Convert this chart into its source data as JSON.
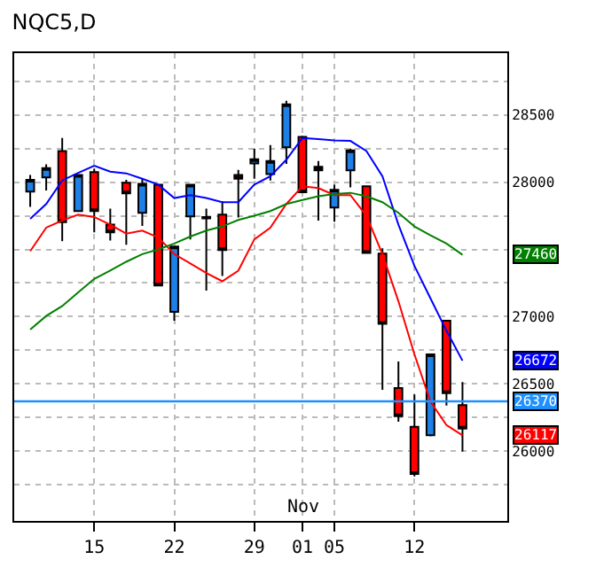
{
  "chart_data": {
    "type": "candlestick",
    "title": "NQC5,D",
    "categories": [
      null,
      null,
      null,
      null,
      "15",
      null,
      null,
      null,
      null,
      "22",
      null,
      null,
      null,
      null,
      "29",
      null,
      null,
      "01",
      null,
      "05",
      null,
      null,
      null,
      null,
      "12",
      null,
      null,
      null
    ],
    "ohlc": [
      [
        27930,
        28053,
        27816,
        28017
      ],
      [
        28035,
        28132,
        27939,
        28105
      ],
      [
        28232,
        28329,
        27561,
        27702
      ],
      [
        27785,
        28060,
        27780,
        28053
      ],
      [
        28075,
        28101,
        27627,
        27785
      ],
      [
        27684,
        27803,
        27566,
        27627
      ],
      [
        27996,
        28018,
        27535,
        27917
      ],
      [
        27772,
        28026,
        27675,
        27987
      ],
      [
        27982,
        27985,
        27230,
        27232
      ],
      [
        27035,
        27525,
        26969,
        27522
      ],
      [
        27746,
        27985,
        27575,
        27982
      ],
      [
        27740,
        27803,
        27193,
        27730
      ],
      [
        27759,
        27860,
        27302,
        27495
      ],
      [
        28053,
        28092,
        27737,
        28026
      ],
      [
        28140,
        28250,
        28026,
        28171
      ],
      [
        28061,
        28276,
        28013,
        28158
      ],
      [
        28259,
        28605,
        28136,
        28579
      ],
      [
        28338,
        28345,
        27920,
        27925
      ],
      [
        28114,
        28158,
        27715,
        28088
      ],
      [
        27811,
        27982,
        27706,
        27943
      ],
      [
        28088,
        28250,
        27961,
        28237
      ],
      [
        27969,
        27975,
        27470,
        27474
      ],
      [
        27469,
        27509,
        26456,
        26947
      ],
      [
        26469,
        26666,
        26219,
        26259
      ],
      [
        26180,
        26421,
        25811,
        25829
      ],
      [
        26118,
        26725,
        26110,
        26719
      ],
      [
        26969,
        26975,
        26338,
        26430
      ],
      [
        26342,
        26513,
        25995,
        26167
      ]
    ],
    "series": [
      {
        "type": "line",
        "color": "#0000ff",
        "values": [
          27728,
          27838,
          28013,
          28070,
          28123,
          28079,
          28066,
          28026,
          27982,
          27882,
          27904,
          27882,
          27851,
          27851,
          27982,
          28044,
          28167,
          28329,
          28320,
          28311,
          28307,
          28232,
          28044,
          27684,
          27377,
          27136,
          26895,
          26672
        ]
      },
      {
        "type": "line",
        "color": "#ff0000",
        "values": [
          27487,
          27662,
          27715,
          27759,
          27741,
          27684,
          27618,
          27640,
          27588,
          27465,
          27395,
          27325,
          27263,
          27342,
          27575,
          27662,
          27838,
          27969,
          27956,
          27904,
          27904,
          27750,
          27465,
          27114,
          26719,
          26368,
          26193,
          26117
        ]
      },
      {
        "type": "line",
        "color": "#008000",
        "values": [
          26904,
          27005,
          27079,
          27180,
          27281,
          27342,
          27408,
          27465,
          27500,
          27544,
          27596,
          27640,
          27671,
          27719,
          27750,
          27785,
          27838,
          27868,
          27895,
          27912,
          27921,
          27895,
          27851,
          27772,
          27671,
          27605,
          27544,
          27460
        ]
      }
    ],
    "ylim": [
      25480,
      28960
    ],
    "yticks": [
      {
        "value": 25750,
        "label": null
      },
      26000,
      {
        "value": 26250,
        "label": null
      },
      26500,
      {
        "value": 26750,
        "label": null
      },
      27000,
      {
        "value": 27250,
        "label": null
      },
      {
        "value": 27500,
        "label": null
      },
      {
        "value": 27750,
        "label": null
      },
      28000,
      {
        "value": 28250,
        "label": null
      },
      28500,
      {
        "value": 28750,
        "label": null
      }
    ],
    "grid": true,
    "ref_lines": [
      {
        "axis": "y",
        "value": 26370,
        "label": "26370",
        "color": "#1e90ff"
      }
    ],
    "xlabel": "Nov",
    "annotations": [
      "26672",
      "26117",
      "27460"
    ]
  }
}
